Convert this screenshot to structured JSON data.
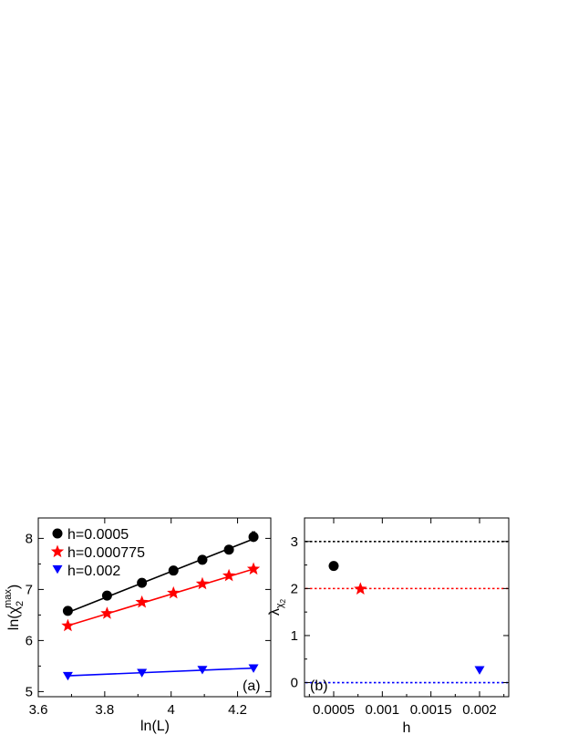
{
  "chart_data": [
    {
      "type": "scatter",
      "panel_label": "(a)",
      "xlabel": "ln(L)",
      "ylabel": {
        "base": "ln(χ",
        "sub": "2",
        "sup": "max",
        "close": ")"
      },
      "xlim": [
        3.6,
        4.3
      ],
      "ylim": [
        4.9,
        8.4
      ],
      "xticks": [
        3.6,
        3.8,
        4.0,
        4.2
      ],
      "xtick_labels": [
        "3.6",
        "3.8",
        "4",
        "4.2"
      ],
      "yticks": [
        5,
        6,
        7,
        8
      ],
      "ytick_labels": [
        "5",
        "6",
        "7",
        "8"
      ],
      "legend_position": "top-left",
      "series": [
        {
          "name": "h=0.0005",
          "marker": "circle",
          "color": "#000000",
          "x": [
            3.689,
            3.807,
            3.912,
            4.007,
            4.094,
            4.174,
            4.248
          ],
          "y": [
            6.58,
            6.88,
            7.13,
            7.37,
            7.58,
            7.78,
            8.03
          ],
          "fit": {
            "x": [
              3.689,
              4.248
            ],
            "y": [
              6.55,
              7.99
            ]
          },
          "error_bar_index": 6,
          "error": 0.1
        },
        {
          "name": "h=0.000775",
          "marker": "star",
          "color": "#ff0000",
          "x": [
            3.689,
            3.807,
            3.912,
            4.007,
            4.094,
            4.174,
            4.248
          ],
          "y": [
            6.29,
            6.53,
            6.75,
            6.93,
            7.11,
            7.27,
            7.4
          ],
          "fit": {
            "x": [
              3.689,
              4.248
            ],
            "y": [
              6.29,
              7.4
            ]
          }
        },
        {
          "name": "h=0.002",
          "marker": "triangle-down",
          "color": "#0000ff",
          "x": [
            3.689,
            3.912,
            4.094,
            4.248
          ],
          "y": [
            5.31,
            5.37,
            5.43,
            5.46
          ],
          "fit": {
            "x": [
              3.689,
              4.248
            ],
            "y": [
              5.31,
              5.46
            ]
          }
        }
      ]
    },
    {
      "type": "scatter",
      "panel_label": "(b)",
      "xlabel": "h",
      "ylabel": {
        "base": "λ",
        "sub": "χ",
        "subsub": "2"
      },
      "xlim": [
        0.0002,
        0.0023
      ],
      "ylim": [
        -0.3,
        3.5
      ],
      "xticks": [
        0.0005,
        0.001,
        0.0015,
        0.002
      ],
      "xtick_labels": [
        "0.0005",
        "0.001",
        "0.0015",
        "0.002"
      ],
      "yticks": [
        0,
        1,
        2,
        3
      ],
      "ytick_labels": [
        "0",
        "1",
        "2",
        "3"
      ],
      "hlines": [
        {
          "y": 3,
          "color": "#000000",
          "style": "dotted"
        },
        {
          "y": 2,
          "color": "#ff0000",
          "style": "dotted"
        },
        {
          "y": 0,
          "color": "#0000ff",
          "style": "dotted"
        }
      ],
      "points": [
        {
          "x": 0.0005,
          "y": 2.48,
          "marker": "circle",
          "color": "#000000"
        },
        {
          "x": 0.000775,
          "y": 1.99,
          "marker": "star",
          "color": "#ff0000"
        },
        {
          "x": 0.002,
          "y": 0.27,
          "marker": "triangle-down",
          "color": "#0000ff"
        }
      ]
    }
  ]
}
